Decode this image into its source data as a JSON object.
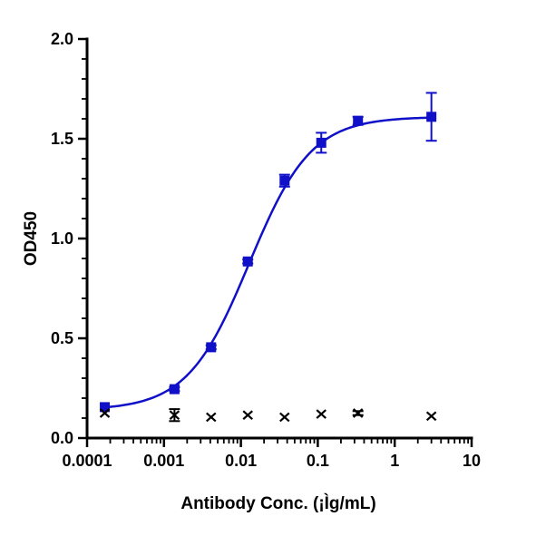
{
  "chart_data": {
    "type": "scatter",
    "title": "",
    "xlabel": "Antibody Conc. (¡Ìg/mL)",
    "ylabel": "OD450",
    "xscale": "log",
    "xlim": [
      0.0001,
      10
    ],
    "ylim": [
      0,
      2.0
    ],
    "x_tick_labels": [
      "0.0001",
      "0.001",
      "0.01",
      "0.1",
      "1",
      "10"
    ],
    "y_tick_labels": [
      "0.0",
      "0.5",
      "1.0",
      "1.5",
      "2.0"
    ],
    "grid": false,
    "legend": "none",
    "series": [
      {
        "marker": "square",
        "color": "#1010c8",
        "fit_curve": "4PL",
        "points": [
          {
            "x": 0.00017,
            "y": 0.155,
            "err": 0.0
          },
          {
            "x": 0.00137,
            "y": 0.245,
            "err": 0.01
          },
          {
            "x": 0.0041,
            "y": 0.455,
            "err": 0.01
          },
          {
            "x": 0.0123,
            "y": 0.885,
            "err": 0.01
          },
          {
            "x": 0.037,
            "y": 1.29,
            "err": 0.03
          },
          {
            "x": 0.111,
            "y": 1.48,
            "err": 0.05
          },
          {
            "x": 0.333,
            "y": 1.59,
            "err": 0.02
          },
          {
            "x": 3.0,
            "y": 1.61,
            "err": 0.12
          }
        ],
        "fit": {
          "bottom": 0.14,
          "top": 1.61,
          "ec50": 0.0128,
          "hill": 1.08
        }
      },
      {
        "marker": "x",
        "color": "#000000",
        "points": [
          {
            "x": 0.00017,
            "y": 0.125,
            "err": 0.0
          },
          {
            "x": 0.00137,
            "y": 0.115,
            "err": 0.03
          },
          {
            "x": 0.0041,
            "y": 0.105,
            "err": 0.0
          },
          {
            "x": 0.0123,
            "y": 0.115,
            "err": 0.0
          },
          {
            "x": 0.037,
            "y": 0.105,
            "err": 0.0
          },
          {
            "x": 0.111,
            "y": 0.12,
            "err": 0.0
          },
          {
            "x": 0.333,
            "y": 0.125,
            "err": 0.01
          },
          {
            "x": 3.0,
            "y": 0.11,
            "err": 0.0
          }
        ]
      }
    ]
  }
}
